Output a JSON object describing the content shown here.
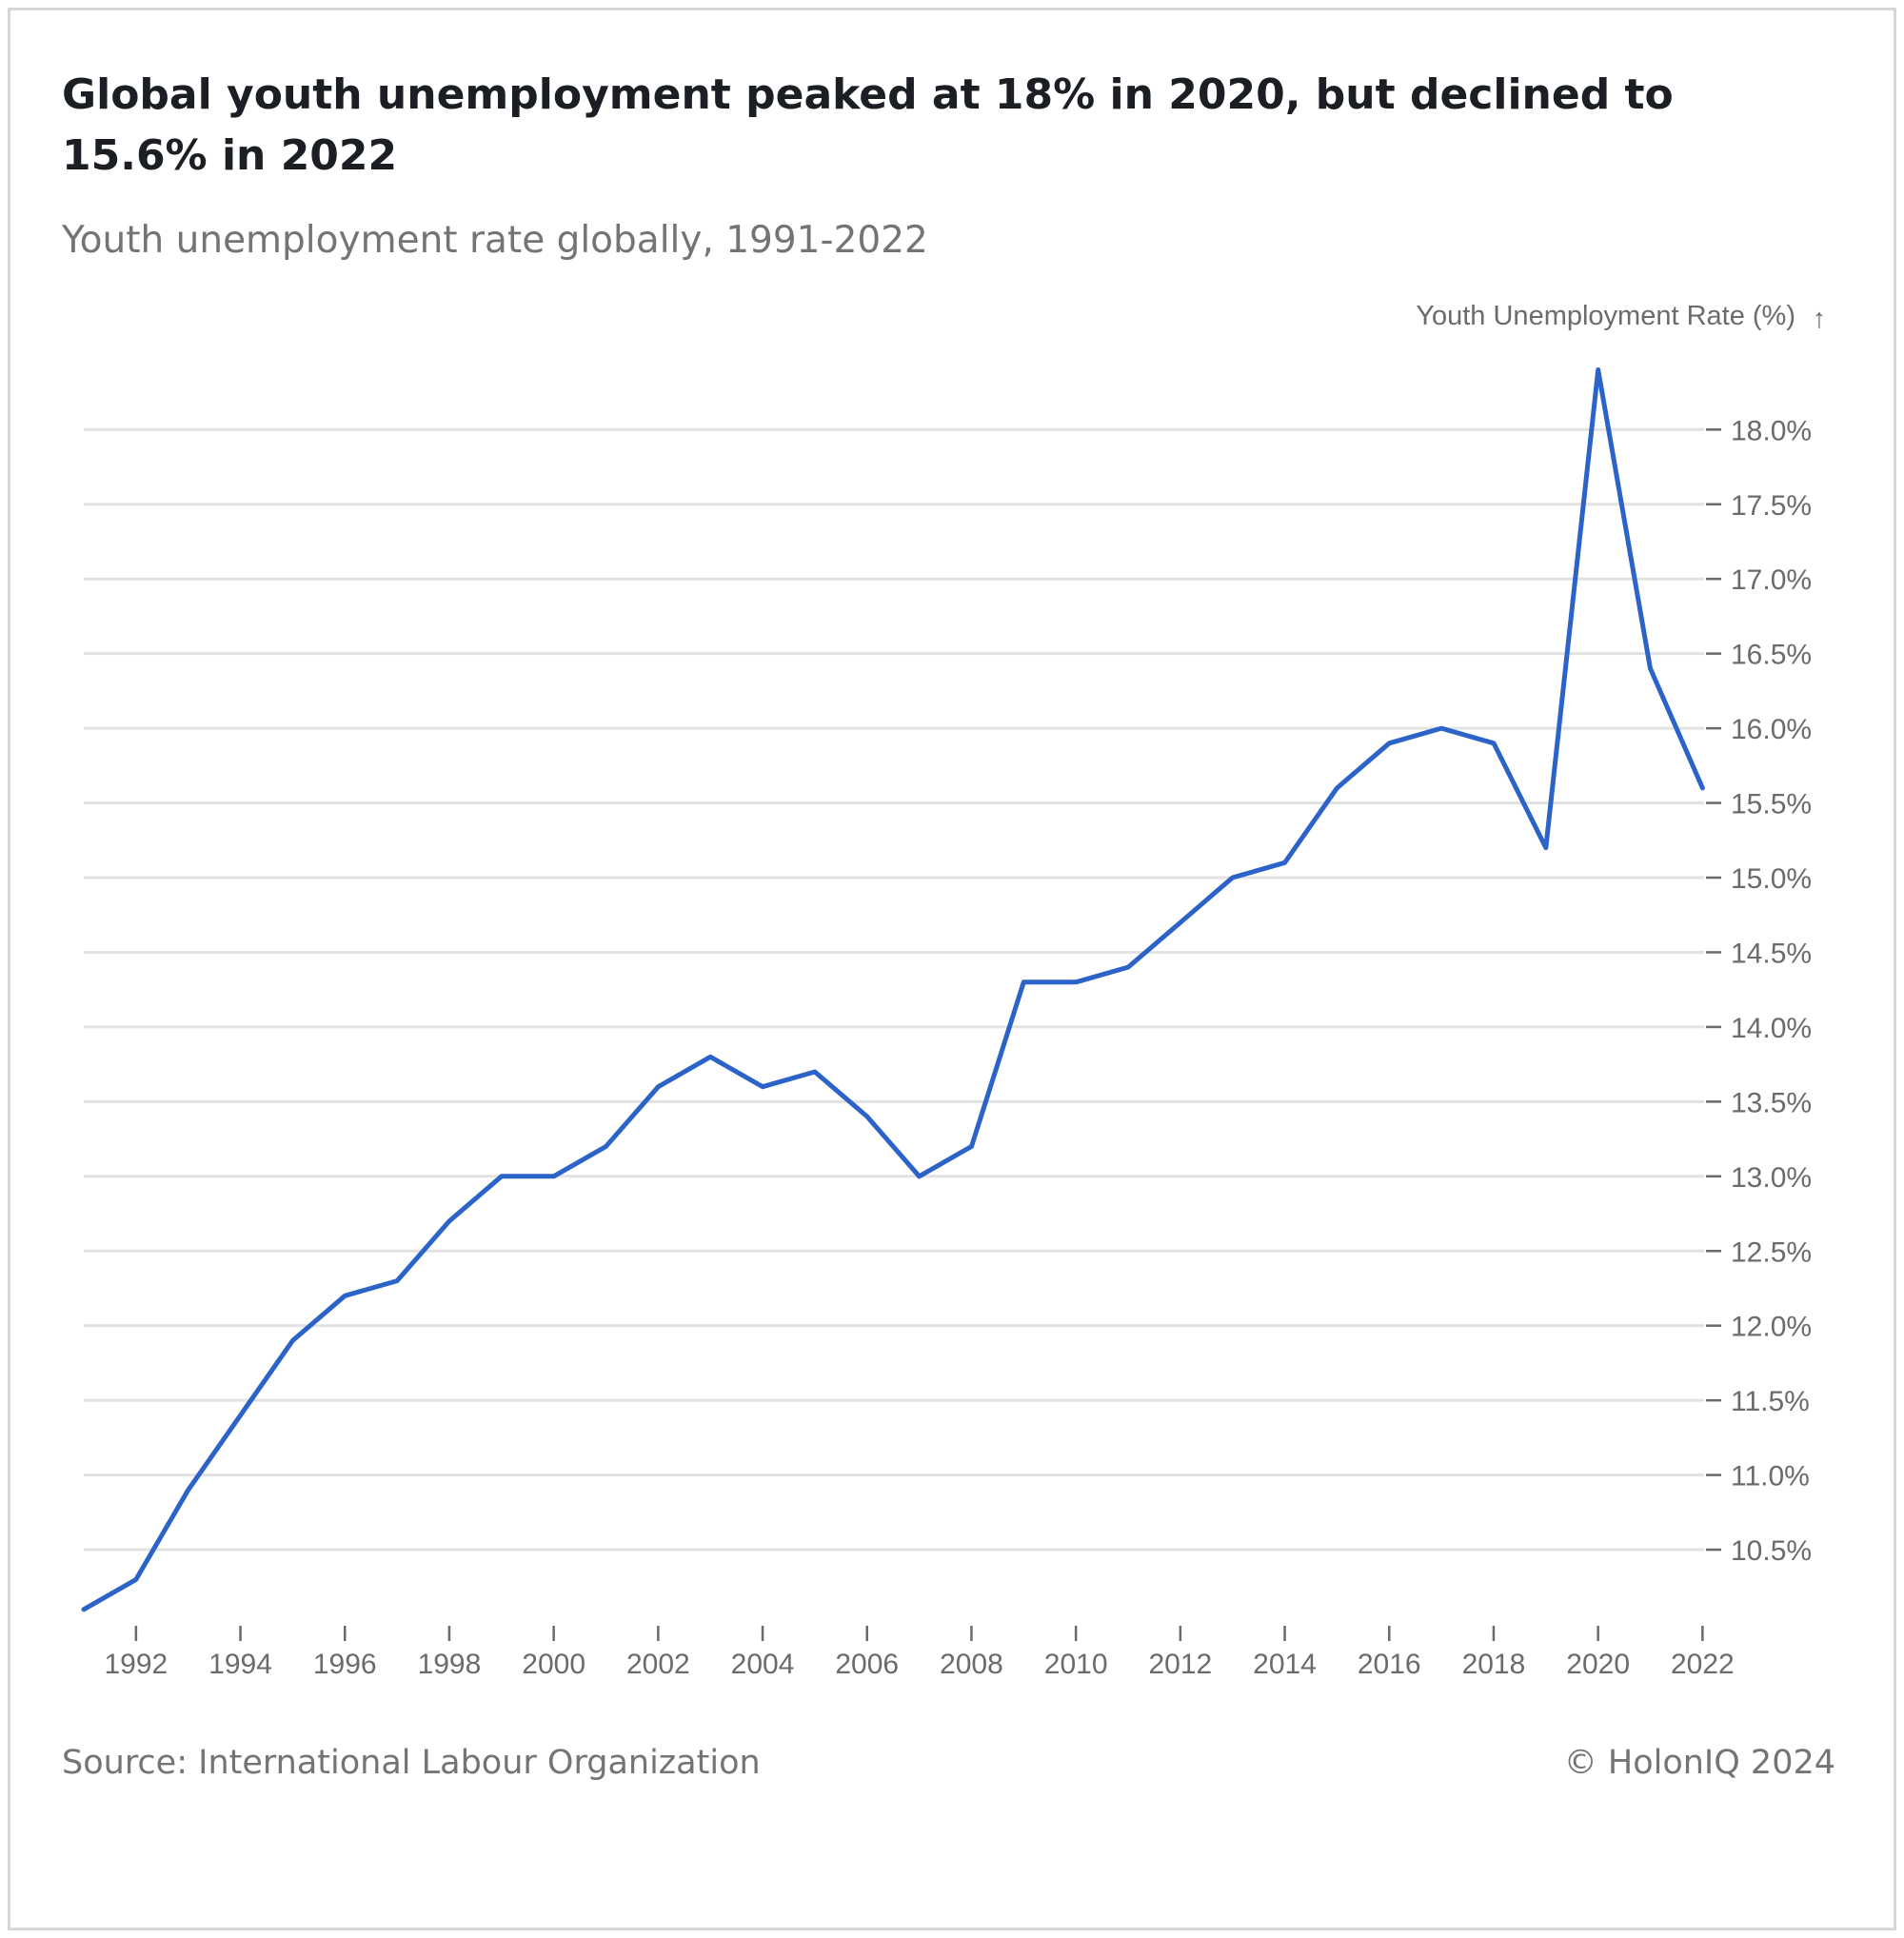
{
  "chart_data": {
    "type": "line",
    "title": "Global youth unemployment peaked at 18% in 2020, but declined to 15.6% in 2022",
    "subtitle": "Youth unemployment rate globally, 1991-2022",
    "ylabel": "Youth Unemployment Rate (%)",
    "ylabel_arrow": "↑",
    "ylim": [
      10,
      18.5
    ],
    "yticks": [
      10.5,
      11.0,
      11.5,
      12.0,
      12.5,
      13.0,
      13.5,
      14.0,
      14.5,
      15.0,
      15.5,
      16.0,
      16.5,
      17.0,
      17.5,
      18.0
    ],
    "ytick_labels": [
      "10.5%",
      "11.0%",
      "11.5%",
      "12.0%",
      "12.5%",
      "13.0%",
      "13.5%",
      "14.0%",
      "14.5%",
      "15.0%",
      "15.5%",
      "16.0%",
      "16.5%",
      "17.0%",
      "17.5%",
      "18.0%"
    ],
    "xlim": [
      1991,
      2022
    ],
    "xticks": [
      1992,
      1994,
      1996,
      1998,
      2000,
      2002,
      2004,
      2006,
      2008,
      2010,
      2012,
      2014,
      2016,
      2018,
      2020,
      2022
    ],
    "xtick_labels": [
      "1992",
      "1994",
      "1996",
      "1998",
      "2000",
      "2002",
      "2004",
      "2006",
      "2008",
      "2010",
      "2012",
      "2014",
      "2016",
      "2018",
      "2020",
      "2022"
    ],
    "grid": true,
    "yaxis_side": "right",
    "line_color": "#2b63c9",
    "series": [
      {
        "x": [
          1991,
          1992,
          1993,
          1994,
          1995,
          1996,
          1997,
          1998,
          1999,
          2000,
          2001,
          2002,
          2003,
          2004,
          2005,
          2006,
          2007,
          2008,
          2009,
          2010,
          2011,
          2012,
          2013,
          2014,
          2015,
          2016,
          2017,
          2018,
          2019,
          2020,
          2021,
          2022
        ],
        "values": [
          10.1,
          10.3,
          10.9,
          11.4,
          11.9,
          12.2,
          12.3,
          12.7,
          13.0,
          13.0,
          13.2,
          13.6,
          13.8,
          13.6,
          13.7,
          13.4,
          13.0,
          13.2,
          14.3,
          14.3,
          14.4,
          14.7,
          15.0,
          15.1,
          15.6,
          15.9,
          16.0,
          15.9,
          15.2,
          18.4,
          16.4,
          15.6
        ]
      }
    ]
  },
  "footer": {
    "source": "Source: International Labour Organization",
    "credit": "© HolonIQ 2024"
  }
}
